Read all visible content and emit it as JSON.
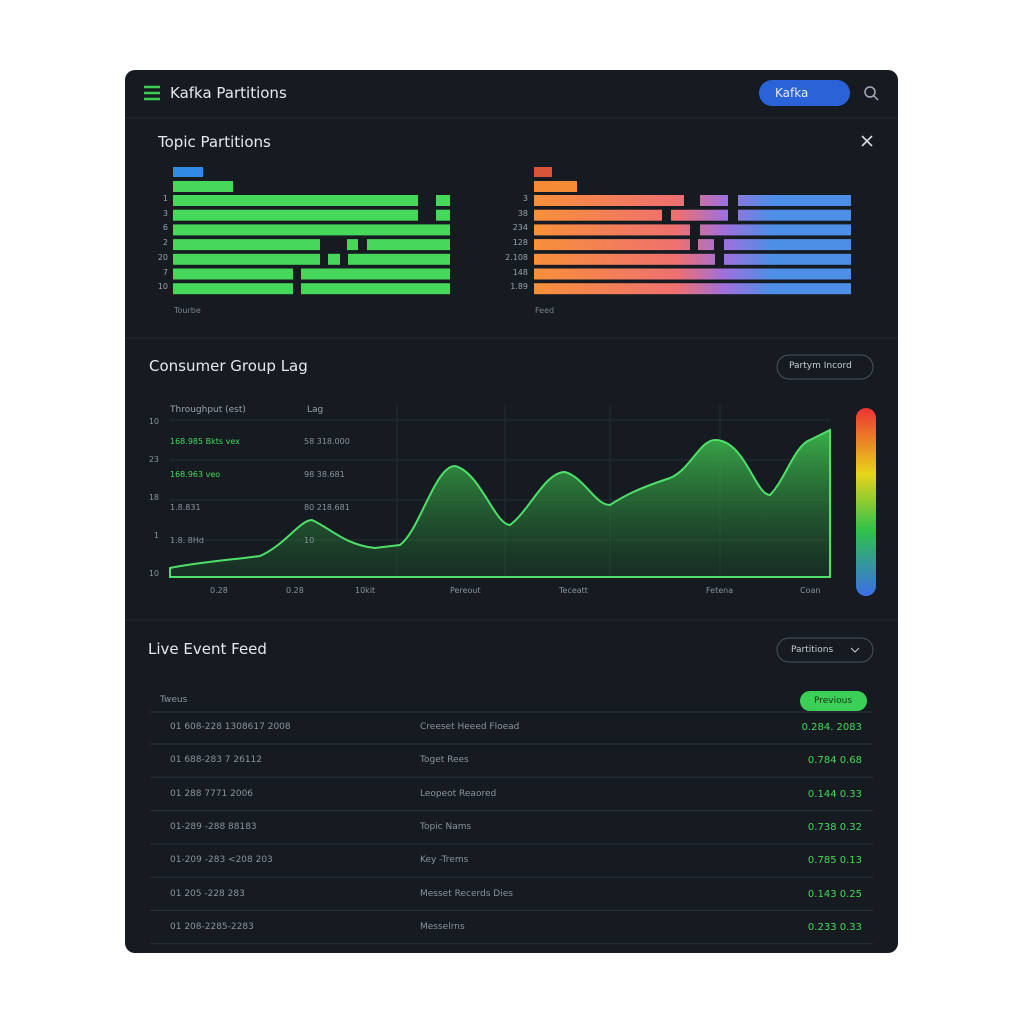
{
  "header": {
    "title": "Kafka Partitions",
    "button": "Kafka"
  },
  "partitions": {
    "title": "Topic Partitions",
    "left": {
      "row_labels": [
        "1",
        "3",
        "6",
        "2",
        "20",
        "7",
        "10"
      ],
      "footer": "Tourbe"
    },
    "right": {
      "row_labels": [
        "3",
        "38",
        "234",
        "128",
        "2.108",
        "148",
        "1.89"
      ],
      "footer": "Feed"
    }
  },
  "lag": {
    "title": "Consumer Group Lag",
    "button": "Partym Incord",
    "table_headers": [
      "Throughput (est)",
      "Lag"
    ],
    "table_rows": [
      [
        "168.985 Bkts vex",
        "58  318.000"
      ],
      [
        "168.963 veo",
        "98  38.681"
      ],
      [
        "1.8.831",
        "80  218.681"
      ],
      [
        "1.8. 8Hd",
        "10"
      ]
    ],
    "y_labels": [
      "10",
      "23",
      "18",
      "1",
      "10"
    ],
    "x_labels": [
      "0.28",
      "0.28",
      "10kit",
      "Pereout",
      "Teceatt",
      "Fetena",
      "Coan"
    ]
  },
  "feed": {
    "title": "Live Event Feed",
    "dropdown": "Partitions",
    "column_header": "Tweus",
    "badge": "Previous",
    "rows": [
      [
        "01 608-228 1308617 2008",
        "Creeset Heeed Floead",
        "0.284. 2083"
      ],
      [
        "01 688-283 7 26112",
        "Toget Rees",
        "0.784 0.68"
      ],
      [
        "01 288 7771 2006",
        "Leopeot Reaored",
        "0.144 0.33"
      ],
      [
        "01-289 -288 88183",
        "Topic Nams",
        "0.738 0.32"
      ],
      [
        "01-209 -283 <208 203",
        "Key -Trems",
        "0.785 0.13"
      ],
      [
        "01 205 -228 283",
        "Messet Recerds Dies",
        "0.143 0.25"
      ],
      [
        "01 208-2285-2283",
        "Messelrns",
        "0.233 0.33"
      ]
    ]
  }
}
